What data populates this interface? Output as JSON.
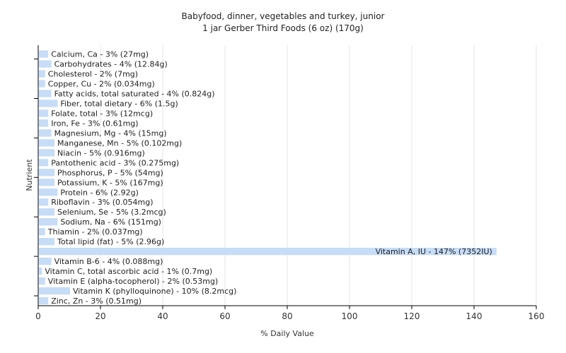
{
  "chart_data": {
    "type": "bar",
    "orientation": "horizontal",
    "title": "Babyfood, dinner, vegetables and turkey, junior",
    "subtitle": "1 jar Gerber Third Foods (6 oz) (170g)",
    "xlabel": "% Daily Value",
    "ylabel": "Nutrient",
    "xlim": [
      0,
      160
    ],
    "xticks": [
      0,
      20,
      40,
      60,
      80,
      100,
      120,
      140,
      160
    ],
    "grid": true,
    "bar_color": "#c6dcf7",
    "categories": [
      "Calcium, Ca",
      "Carbohydrates",
      "Cholesterol",
      "Copper, Cu",
      "Fatty acids, total saturated",
      "Fiber, total dietary",
      "Folate, total",
      "Iron, Fe",
      "Magnesium, Mg",
      "Manganese, Mn",
      "Niacin",
      "Pantothenic acid",
      "Phosphorus, P",
      "Potassium, K",
      "Protein",
      "Riboflavin",
      "Selenium, Se",
      "Sodium, Na",
      "Thiamin",
      "Total lipid (fat)",
      "Vitamin A, IU",
      "Vitamin B-6",
      "Vitamin C, total ascorbic acid",
      "Vitamin E (alpha-tocopherol)",
      "Vitamin K (phylloquinone)",
      "Zinc, Zn"
    ],
    "values": [
      3,
      4,
      2,
      2,
      4,
      6,
      3,
      3,
      4,
      5,
      5,
      3,
      5,
      5,
      6,
      3,
      5,
      6,
      2,
      5,
      147,
      4,
      1,
      2,
      10,
      3
    ],
    "labels": [
      "Calcium, Ca - 3% (27mg)",
      "Carbohydrates - 4% (12.84g)",
      "Cholesterol - 2% (7mg)",
      "Copper, Cu - 2% (0.034mg)",
      "Fatty acids, total saturated - 4% (0.824g)",
      "Fiber, total dietary - 6% (1.5g)",
      "Folate, total - 3% (12mcg)",
      "Iron, Fe - 3% (0.61mg)",
      "Magnesium, Mg - 4% (15mg)",
      "Manganese, Mn - 5% (0.102mg)",
      "Niacin - 5% (0.916mg)",
      "Pantothenic acid - 3% (0.275mg)",
      "Phosphorus, P - 5% (54mg)",
      "Potassium, K - 5% (167mg)",
      "Protein - 6% (2.92g)",
      "Riboflavin - 3% (0.054mg)",
      "Selenium, Se - 5% (3.2mcg)",
      "Sodium, Na - 6% (151mg)",
      "Thiamin - 2% (0.037mg)",
      "Total lipid (fat) - 5% (2.96g)",
      "Vitamin A, IU - 147% (7352IU)",
      "Vitamin B-6 - 4% (0.088mg)",
      "Vitamin C, total ascorbic acid - 1% (0.7mg)",
      "Vitamin E (alpha-tocopherol) - 2% (0.53mg)",
      "Vitamin K (phylloquinone) - 10% (8.2mcg)",
      "Zinc, Zn - 3% (0.51mg)"
    ]
  }
}
